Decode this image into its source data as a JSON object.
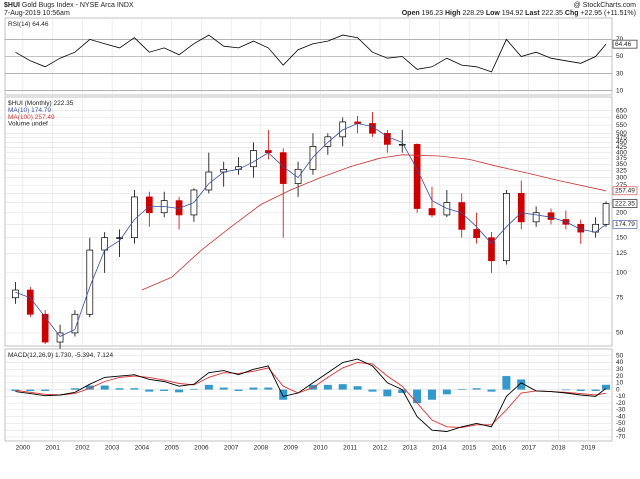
{
  "header": {
    "symbol": "$HUI",
    "title": "Gold Bugs Index - NYSE Arca INDX",
    "date": "7-Aug-2019 10:56am",
    "brand": "@ StockCharts.com",
    "quote": [
      {
        "label": "Open",
        "value": "196.23"
      },
      {
        "label": "High",
        "value": "228.29"
      },
      {
        "label": "Low",
        "value": "194.92"
      },
      {
        "label": "Last",
        "value": "222.35"
      },
      {
        "label": "Chg",
        "value": "+22.95 (+11.51%)"
      }
    ]
  },
  "chart_data": [
    {
      "type": "line",
      "name": "RSI(14)",
      "color": "#000000",
      "x": [
        1999.75,
        2000.25,
        2000.75,
        2001.25,
        2001.75,
        2002.25,
        2002.75,
        2003.25,
        2003.75,
        2004.25,
        2004.75,
        2005.25,
        2005.75,
        2006.25,
        2006.75,
        2007.25,
        2007.75,
        2008.25,
        2008.75,
        2009.25,
        2009.75,
        2010.25,
        2010.75,
        2011.25,
        2011.75,
        2012.25,
        2012.75,
        2013.25,
        2013.75,
        2014.25,
        2014.75,
        2015.25,
        2015.75,
        2016.25,
        2016.75,
        2017.25,
        2017.75,
        2018.25,
        2018.75,
        2019.25,
        2019.6
      ],
      "values": [
        55,
        45,
        38,
        48,
        55,
        70,
        65,
        60,
        72,
        55,
        60,
        52,
        65,
        75,
        62,
        60,
        68,
        60,
        40,
        58,
        65,
        68,
        75,
        72,
        55,
        48,
        50,
        35,
        38,
        48,
        40,
        38,
        32,
        70,
        50,
        55,
        48,
        45,
        42,
        50,
        64.46
      ],
      "xlim": [
        1999.4,
        2019.8
      ],
      "ylim": [
        5,
        95
      ],
      "yticks": [
        10,
        30,
        50,
        70
      ],
      "grid": true
    },
    {
      "type": "candlestick",
      "name": "$HUI (Monthly)",
      "log": true,
      "up_color": "#000000",
      "down_color": "#cc0000",
      "x": [
        1999.75,
        2000.25,
        2000.75,
        2001.25,
        2001.75,
        2002.25,
        2002.75,
        2003.25,
        2003.75,
        2004.25,
        2004.75,
        2005.25,
        2005.75,
        2006.25,
        2006.75,
        2007.25,
        2007.75,
        2008.25,
        2008.75,
        2009.25,
        2009.75,
        2010.25,
        2010.75,
        2011.25,
        2011.75,
        2012.25,
        2012.75,
        2013.25,
        2013.75,
        2014.25,
        2014.75,
        2015.25,
        2015.75,
        2016.25,
        2016.75,
        2017.25,
        2017.75,
        2018.25,
        2018.75,
        2019.25,
        2019.6
      ],
      "open": [
        75,
        82,
        62,
        45,
        50,
        62,
        130,
        150,
        150,
        240,
        200,
        230,
        195,
        260,
        320,
        330,
        340,
        410,
        400,
        280,
        330,
        430,
        480,
        570,
        560,
        500,
        440,
        440,
        210,
        195,
        225,
        165,
        150,
        115,
        250,
        180,
        200,
        185,
        175,
        160,
        175
      ],
      "high": [
        90,
        85,
        65,
        55,
        65,
        150,
        160,
        165,
        260,
        255,
        255,
        240,
        265,
        400,
        360,
        380,
        450,
        520,
        420,
        360,
        500,
        500,
        600,
        610,
        640,
        520,
        520,
        445,
        270,
        260,
        250,
        200,
        160,
        260,
        290,
        215,
        210,
        205,
        185,
        190,
        228
      ],
      "low": [
        70,
        60,
        44,
        40,
        48,
        60,
        100,
        120,
        140,
        170,
        190,
        165,
        180,
        250,
        270,
        310,
        300,
        370,
        150,
        240,
        310,
        390,
        430,
        500,
        480,
        400,
        400,
        200,
        190,
        190,
        150,
        140,
        100,
        110,
        165,
        170,
        175,
        165,
        140,
        150,
        170
      ],
      "close": [
        82,
        62,
        45,
        50,
        62,
        130,
        150,
        150,
        240,
        200,
        230,
        195,
        260,
        320,
        330,
        340,
        410,
        400,
        280,
        330,
        430,
        480,
        570,
        560,
        500,
        440,
        440,
        210,
        195,
        225,
        165,
        150,
        115,
        250,
        180,
        200,
        185,
        175,
        160,
        175,
        222.35
      ],
      "series": [
        {
          "name": "MA(10)",
          "color": "#3a4fa0",
          "values": [
            80,
            75,
            60,
            48,
            52,
            85,
            130,
            145,
            185,
            215,
            215,
            210,
            225,
            280,
            320,
            330,
            360,
            400,
            340,
            300,
            380,
            450,
            520,
            560,
            540,
            480,
            450,
            330,
            230,
            210,
            200,
            170,
            140,
            170,
            200,
            195,
            190,
            180,
            165,
            160,
            174.79
          ]
        },
        {
          "name": "MA(100)",
          "color": "#cc3333",
          "x": [
            2004.0,
            2005.0,
            2006.0,
            2007.0,
            2008.0,
            2009.0,
            2010.0,
            2011.0,
            2012.0,
            2012.75,
            2014.0,
            2015.0,
            2016.0,
            2017.0,
            2018.0,
            2019.6
          ],
          "values": [
            82,
            95,
            130,
            170,
            220,
            260,
            300,
            340,
            375,
            390,
            385,
            370,
            340,
            315,
            290,
            257.49
          ]
        }
      ],
      "volume_note": "Volume undef",
      "xlim": [
        1999.4,
        2019.8
      ],
      "ylim": [
        43,
        760
      ],
      "yticks": [
        50,
        75,
        100,
        125,
        150,
        175,
        200,
        225,
        250,
        275,
        300,
        325,
        350,
        375,
        400,
        425,
        450,
        475,
        500,
        550,
        600,
        650
      ],
      "grid": true
    },
    {
      "type": "macd",
      "name": "MACD(12,26,9)",
      "values_label": "1.730, -5.394, 7.124",
      "color": "#000000",
      "signal_color": "#dd3333",
      "histogram_color": "#3399cc",
      "x": [
        1999.75,
        2000.25,
        2000.75,
        2001.25,
        2001.75,
        2002.25,
        2002.75,
        2003.25,
        2003.75,
        2004.25,
        2004.75,
        2005.25,
        2005.75,
        2006.25,
        2006.75,
        2007.25,
        2007.75,
        2008.25,
        2008.75,
        2009.25,
        2009.75,
        2010.25,
        2010.75,
        2011.25,
        2011.75,
        2012.25,
        2012.75,
        2013.25,
        2013.75,
        2014.25,
        2014.75,
        2015.25,
        2015.75,
        2016.25,
        2016.75,
        2017.25,
        2017.75,
        2018.25,
        2018.75,
        2019.25,
        2019.6
      ],
      "values": [
        -3,
        -6,
        -9,
        -8,
        -4,
        8,
        18,
        20,
        22,
        15,
        12,
        5,
        8,
        25,
        28,
        22,
        30,
        35,
        -10,
        -5,
        10,
        25,
        40,
        45,
        35,
        10,
        0,
        -40,
        -60,
        -62,
        -55,
        -50,
        -55,
        -10,
        10,
        -2,
        -3,
        -5,
        -8,
        -10,
        1.73
      ],
      "signal": [
        -1,
        -4,
        -7,
        -8,
        -6,
        2,
        12,
        18,
        20,
        18,
        14,
        9,
        7,
        18,
        25,
        24,
        27,
        32,
        5,
        -5,
        3,
        18,
        32,
        40,
        38,
        20,
        5,
        -20,
        -45,
        -55,
        -56,
        -52,
        -52,
        -30,
        -5,
        -2,
        -3,
        -4,
        -6,
        -8,
        -5.394
      ],
      "histogram": [
        -2,
        -2,
        -2,
        0,
        2,
        6,
        6,
        2,
        2,
        -3,
        -2,
        -4,
        1,
        7,
        3,
        -2,
        3,
        3,
        -15,
        0,
        7,
        7,
        8,
        5,
        -3,
        -10,
        -5,
        -20,
        -15,
        -7,
        1,
        2,
        -3,
        20,
        15,
        0,
        0,
        -1,
        -2,
        -2,
        7.124
      ],
      "xlim": [
        1999.4,
        2019.8
      ],
      "xticks": [
        2000,
        2001,
        2002,
        2003,
        2004,
        2005,
        2006,
        2007,
        2008,
        2009,
        2010,
        2011,
        2012,
        2013,
        2014,
        2015,
        2016,
        2017,
        2018,
        2019
      ],
      "ylim": [
        -76,
        60
      ],
      "yticks": [
        -70,
        -60,
        -50,
        -40,
        -30,
        -20,
        -10,
        0,
        10,
        20,
        30,
        40,
        50
      ],
      "grid": true
    }
  ]
}
